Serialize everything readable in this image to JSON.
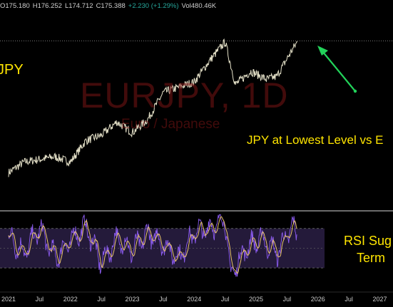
{
  "ohlc": {
    "open": "O175.180",
    "high": "H176.252",
    "low": "L174.712",
    "close": "C175.388",
    "change": "+2.230 (+1.29%)",
    "volume": "Vol480.46K"
  },
  "watermark": {
    "symbol": "EURJPY, 1D",
    "subtitle": "Euro / Japanese"
  },
  "annotations": {
    "left_label": "JPY",
    "main_callout": "JPY at Lowest Level vs E",
    "rsi_line1": "RSI Sug",
    "rsi_line2": "Term"
  },
  "colors": {
    "price_line": "#e6e2c9",
    "rsi_line": "#8c5cf0",
    "rsi_signal": "#e9c46a",
    "rsi_band": "#241a3a",
    "arrow": "#22d35a",
    "annotation": "#ffe500",
    "axis_text": "#cccccc"
  },
  "chart_data": [
    {
      "type": "line",
      "series": [
        {
          "x": [
            "2021-01",
            "2021-04",
            "2021-07",
            "2021-10",
            "2022-01",
            "2022-04",
            "2022-07",
            "2022-10",
            "2023-01",
            "2023-04",
            "2023-07",
            "2023-10",
            "2024-01",
            "2024-04",
            "2024-07",
            "2024-09",
            "2024-12",
            "2025-03",
            "2025-05",
            "2025-08",
            "2025-09"
          ],
          "values": [
            126,
            130,
            131,
            132,
            130,
            138,
            140,
            145,
            141,
            146,
            156,
            158,
            160,
            168,
            175,
            159,
            164,
            161,
            162,
            172,
            175
          ]
        }
      ],
      "horizontal_line": 175.39
    },
    {
      "type": "line",
      "series": [
        {
          "x": [
            "2021-01",
            "2021-04",
            "2021-07",
            "2021-10",
            "2022-01",
            "2022-04",
            "2022-07",
            "2022-10",
            "2023-01",
            "2023-04",
            "2023-07",
            "2023-10",
            "2024-01",
            "2024-04",
            "2024-07",
            "2024-08",
            "2024-11",
            "2025-02",
            "2025-05",
            "2025-08",
            "2025-09"
          ],
          "values": [
            62,
            45,
            70,
            40,
            58,
            72,
            35,
            60,
            48,
            65,
            55,
            40,
            66,
            70,
            80,
            22,
            50,
            60,
            45,
            72,
            62
          ]
        }
      ],
      "ylim": [
        20,
        85
      ],
      "band": [
        30,
        70
      ]
    }
  ],
  "xaxis": {
    "tick_labels": [
      "2021",
      "Jul",
      "2022",
      "Jul",
      "2023",
      "Jul",
      "2024",
      "Jul",
      "2025",
      "Jul",
      "2026",
      "Jul",
      "2027"
    ]
  }
}
